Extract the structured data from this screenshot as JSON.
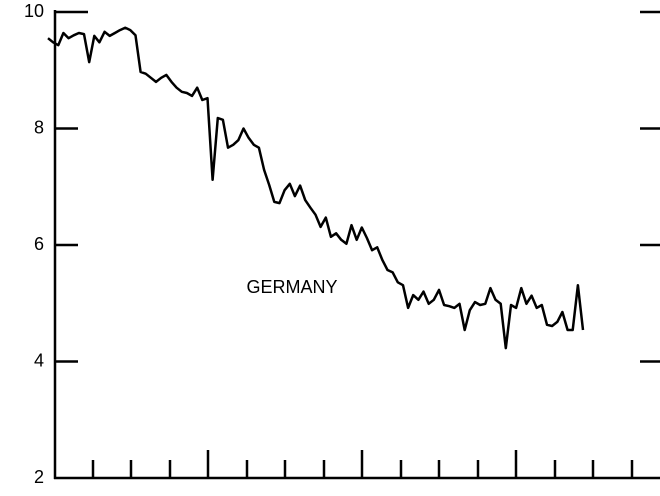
{
  "chart_data": {
    "type": "line",
    "annotation": "GERMANY",
    "color": "#000000",
    "ylim": [
      2,
      10
    ],
    "yticks": [
      2,
      4,
      6,
      8,
      10
    ],
    "values": [
      9.55,
      9.48,
      9.43,
      9.64,
      9.55,
      9.6,
      9.64,
      9.62,
      9.14,
      9.59,
      9.48,
      9.66,
      9.59,
      9.64,
      9.69,
      9.73,
      9.69,
      9.6,
      8.97,
      8.94,
      8.87,
      8.8,
      8.87,
      8.92,
      8.8,
      8.7,
      8.63,
      8.61,
      8.56,
      8.7,
      8.49,
      8.52,
      7.12,
      8.18,
      8.15,
      7.67,
      7.72,
      7.8,
      8.0,
      7.84,
      7.72,
      7.67,
      7.29,
      7.03,
      6.74,
      6.72,
      6.94,
      7.05,
      6.84,
      7.02,
      6.77,
      6.64,
      6.52,
      6.31,
      6.47,
      6.14,
      6.2,
      6.09,
      6.02,
      6.34,
      6.09,
      6.3,
      6.12,
      5.91,
      5.96,
      5.74,
      5.57,
      5.53,
      5.36,
      5.31,
      4.92,
      5.14,
      5.06,
      5.2,
      4.99,
      5.06,
      5.23,
      4.97,
      4.95,
      4.92,
      4.99,
      4.54,
      4.88,
      5.02,
      4.97,
      4.99,
      5.26,
      5.06,
      4.99,
      4.23,
      4.97,
      4.92,
      5.26,
      4.99,
      5.13,
      4.92,
      4.97,
      4.63,
      4.61,
      4.68,
      4.85,
      4.54,
      4.54,
      5.31,
      4.54
    ]
  }
}
